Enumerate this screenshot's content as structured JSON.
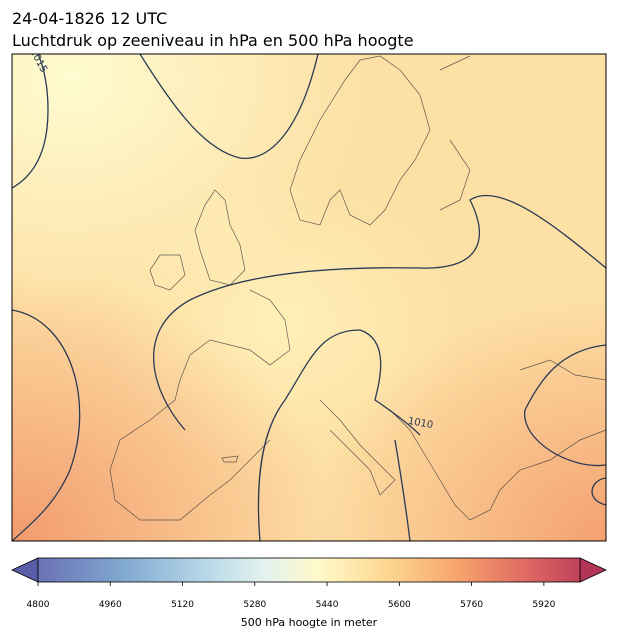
{
  "title": "24-04-1826 12 UTC",
  "subtitle": "Luchtdruk op zeeniveau in hPa en 500 hPa hoogte",
  "map": {
    "contour_labels": [
      "1015",
      "1010"
    ]
  },
  "colorbar": {
    "label": "500 hPa hoogte in meter",
    "range": [
      4800,
      6000
    ],
    "ticks": [
      4800,
      4960,
      5120,
      5280,
      5440,
      5600,
      5760,
      5920
    ]
  }
}
